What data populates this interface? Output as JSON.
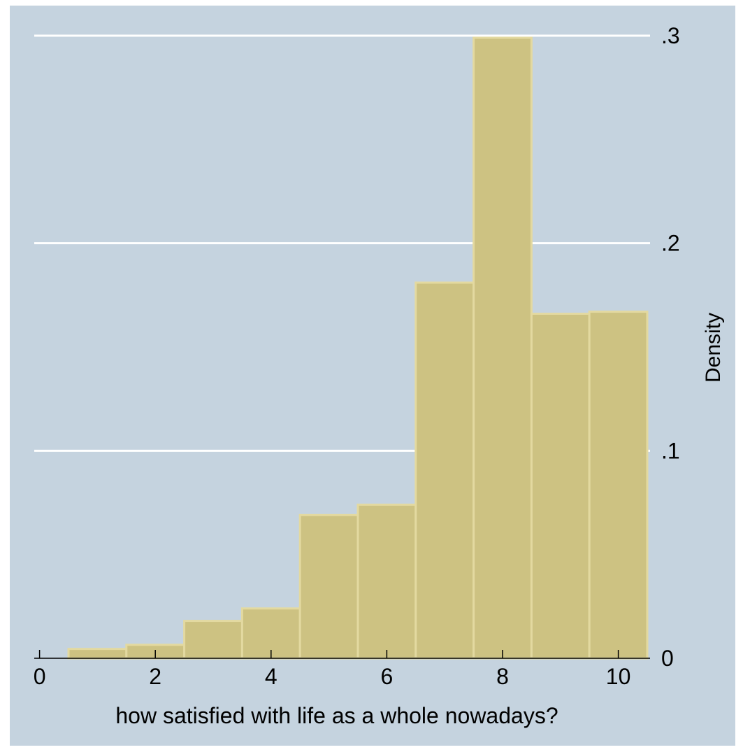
{
  "chart_data": {
    "type": "bar",
    "xlabel": "how satisfied with life as a whole nowadays?",
    "ylabel": "Density",
    "bins": [
      {
        "x0": 0.5,
        "x1": 1.5,
        "density": 0.0045
      },
      {
        "x0": 1.5,
        "x1": 2.5,
        "density": 0.0065
      },
      {
        "x0": 2.5,
        "x1": 3.5,
        "density": 0.018
      },
      {
        "x0": 3.5,
        "x1": 4.5,
        "density": 0.024
      },
      {
        "x0": 4.5,
        "x1": 5.5,
        "density": 0.069
      },
      {
        "x0": 5.5,
        "x1": 6.5,
        "density": 0.074
      },
      {
        "x0": 6.5,
        "x1": 7.5,
        "density": 0.181
      },
      {
        "x0": 7.5,
        "x1": 8.5,
        "density": 0.299
      },
      {
        "x0": 8.5,
        "x1": 9.5,
        "density": 0.166
      },
      {
        "x0": 9.5,
        "x1": 10.5,
        "density": 0.167
      }
    ],
    "xlim": [
      0,
      10.5
    ],
    "ylim": [
      0,
      0.3
    ],
    "x_ticks": [
      {
        "value": 0,
        "label": "0"
      },
      {
        "value": 2,
        "label": "2"
      },
      {
        "value": 4,
        "label": "4"
      },
      {
        "value": 6,
        "label": "6"
      },
      {
        "value": 8,
        "label": "8"
      },
      {
        "value": 10,
        "label": "10"
      }
    ],
    "y_ticks": [
      {
        "value": 0,
        "label": "0"
      },
      {
        "value": 0.1,
        "label": ".1"
      },
      {
        "value": 0.2,
        "label": ".2"
      },
      {
        "value": 0.3,
        "label": ".3"
      }
    ],
    "y_axis_side": "right",
    "grid": true,
    "colors": {
      "background": "#c5d3df",
      "plot_background": "#c5d3df",
      "bar_fill": "#cdc282",
      "bar_stroke": "#e3d9a0",
      "grid": "#ffffff",
      "axis": "#000000"
    }
  }
}
